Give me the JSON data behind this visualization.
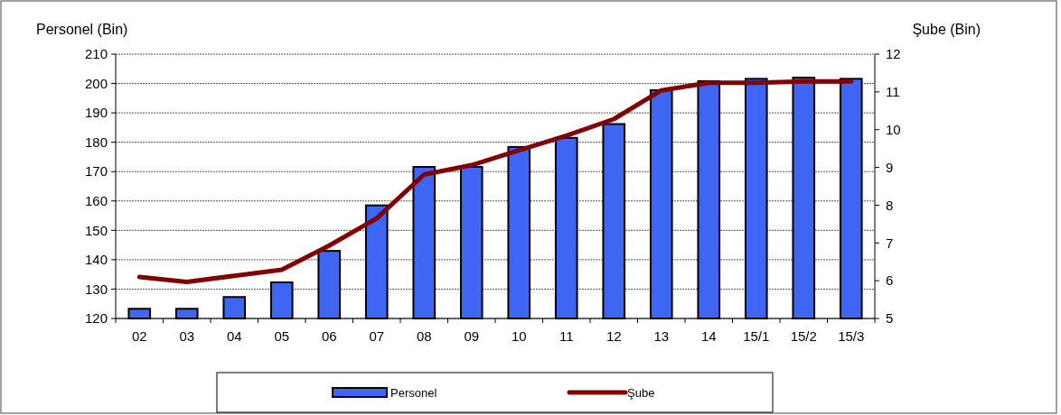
{
  "chart_data": {
    "type": "bar",
    "ylabel": "Personel (Bin)",
    "y2label": "Şube (Bin)",
    "categories": [
      "02",
      "03",
      "04",
      "05",
      "06",
      "07",
      "08",
      "09",
      "10",
      "11",
      "12",
      "13",
      "14",
      "15/1",
      "15/2",
      "15/3"
    ],
    "series": [
      {
        "name": "Personel",
        "color": "#3f66f2",
        "values": [
          123.3,
          123.3,
          127.3,
          132.3,
          143,
          158.5,
          171.6,
          171.6,
          178.4,
          181.5,
          186.2,
          197.7,
          200.8,
          201.6,
          202,
          201.6
        ]
      },
      {
        "name": "Şube",
        "type": "line",
        "axis": "y2",
        "color": "#800000",
        "values": [
          6.1,
          5.97,
          6.13,
          6.29,
          6.93,
          7.65,
          8.81,
          9.06,
          9.45,
          9.84,
          10.28,
          11.04,
          11.24,
          11.24,
          11.28,
          11.28
        ]
      }
    ],
    "ylim": [
      120,
      210
    ],
    "yticks": [
      120,
      130,
      140,
      150,
      160,
      170,
      180,
      190,
      200,
      210
    ],
    "y2lim": [
      5,
      12
    ],
    "y2ticks": [
      5,
      6,
      7,
      8,
      9,
      10,
      11,
      12
    ],
    "grid": "y",
    "legend": "bottom",
    "marker": "none",
    "line_style": "solid"
  }
}
